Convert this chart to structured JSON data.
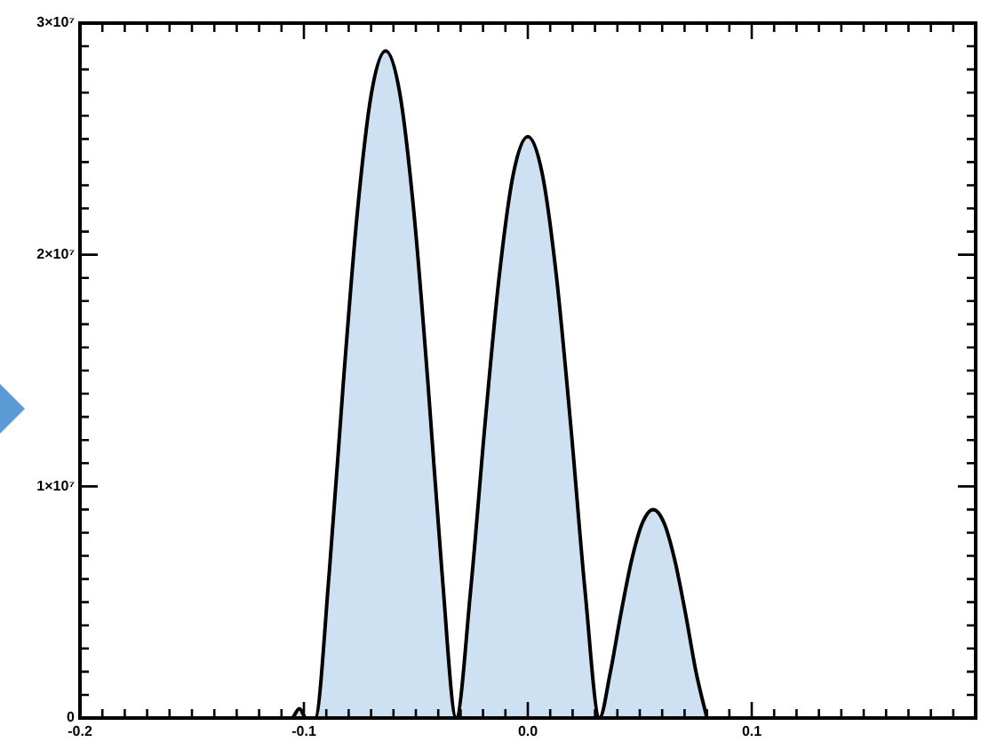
{
  "chart_data": {
    "type": "area",
    "x": [
      -0.105,
      -0.102,
      -0.099,
      -0.095,
      -0.0887,
      -0.0824,
      -0.0761,
      -0.0698,
      -0.0635,
      -0.0572,
      -0.0509,
      -0.0446,
      -0.0383,
      -0.032,
      -0.0256,
      -0.0192,
      -0.0128,
      -0.0064,
      0,
      0.0064,
      0.0128,
      0.0192,
      0.0256,
      0.032,
      0.0368,
      0.0416,
      0.0464,
      0.0512,
      0.056,
      0.0608,
      0.0656,
      0.0704,
      0.0752,
      0.08
    ],
    "series": [
      {
        "color": "#000000",
        "values": [
          0,
          400000,
          0,
          0,
          6250000,
          14460000,
          21860000,
          26990000,
          28800000,
          26990000,
          21860000,
          14460000,
          6250000,
          0,
          5450000,
          12600000,
          19050000,
          23520000,
          25100000,
          23520000,
          19050000,
          12600000,
          5450000,
          0,
          1950000,
          4520000,
          6830000,
          8430000,
          9000000,
          8430000,
          6830000,
          4520000,
          1950000,
          0
        ]
      }
    ],
    "xlim": [
      -0.2,
      0.2
    ],
    "xticks": [
      {
        "value": -0.2,
        "label": "-0.2"
      },
      {
        "value": -0.1,
        "label": "-0.1"
      },
      {
        "value": 0,
        "label": "0.0"
      },
      {
        "value": 0.1,
        "label": "0.1"
      },
      {
        "value": 0.2,
        "label": null
      }
    ],
    "ylim": [
      0,
      30000000
    ],
    "yticks": [
      {
        "value": 0,
        "label": "0"
      },
      {
        "value": 10000000,
        "label": "1×10⁷"
      },
      {
        "value": 20000000,
        "label": "2×10⁷"
      },
      {
        "value": 30000000,
        "label": "3×10⁷"
      }
    ],
    "legend": false,
    "grid": false
  }
}
